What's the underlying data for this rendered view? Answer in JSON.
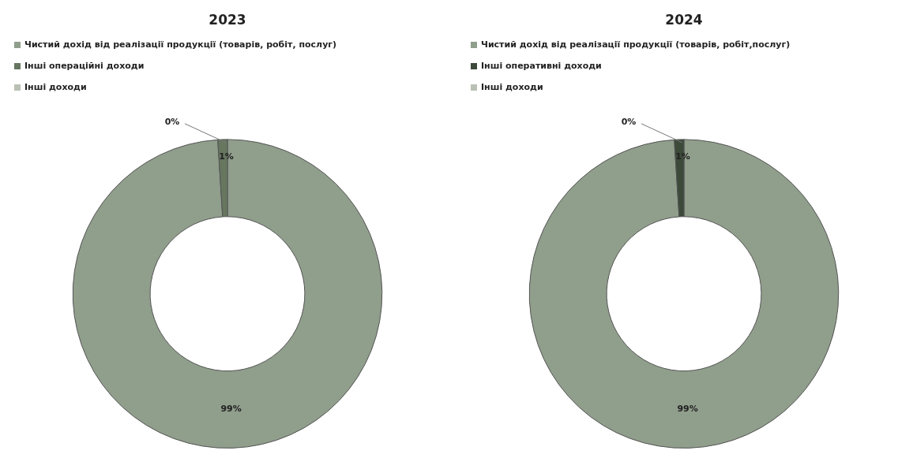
{
  "chart_data": [
    {
      "type": "donut",
      "title": "2023",
      "categories": [
        "Чистий дохід від реалізації продукції (товарів, робіт, послуг)",
        "Інші операційні доходи",
        "Інші доходи"
      ],
      "values": [
        99,
        1,
        0
      ],
      "colors": [
        "#909e8c",
        "#66765f",
        "#b9c1b5"
      ],
      "value_labels": [
        "99%",
        "1%",
        "0%"
      ],
      "legend": "top left"
    },
    {
      "type": "donut",
      "title": "2024",
      "categories": [
        "Чистий дохід від реалізації продукції (товарів, робіт,послуг)",
        "Інші оперативні доходи",
        "Інші доходи"
      ],
      "values": [
        99,
        1,
        0
      ],
      "colors": [
        "#909e8c",
        "#3c4a3a",
        "#b9c1b5"
      ],
      "value_labels": [
        "99%",
        "1%",
        "0%"
      ],
      "legend": "top left"
    }
  ]
}
